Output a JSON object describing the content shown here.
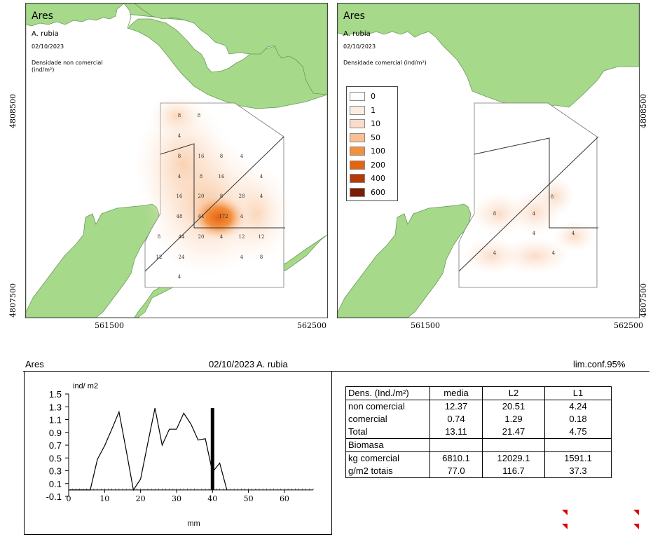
{
  "map_left": {
    "title": "Ares",
    "species": "A. rubia",
    "date": "02/10/2023",
    "density_label": "Densidade non comercial (ind/m²)",
    "point_labels": [
      "8",
      "8",
      "4",
      "8",
      "16",
      "8",
      "4",
      "4",
      "8",
      "16",
      "4",
      "16",
      "20",
      "8",
      "28",
      "4",
      "48",
      "44",
      "172",
      "4",
      "8",
      "44",
      "20",
      "4",
      "12",
      "12",
      "12",
      "24",
      "4",
      "8",
      "4"
    ]
  },
  "map_right": {
    "title": "Ares",
    "species": "A. rubia",
    "date": "02/10/2023",
    "density_label": "Densidade comercial (ind/m²)",
    "point_labels": [
      "8",
      "8",
      "4",
      "4",
      "4",
      "4",
      "4"
    ]
  },
  "legend": {
    "entries": [
      {
        "label": "0",
        "color": "#ffffff"
      },
      {
        "label": "1",
        "color": "#fdece0"
      },
      {
        "label": "10",
        "color": "#fbdcc8"
      },
      {
        "label": "50",
        "color": "#f8c094"
      },
      {
        "label": "100",
        "color": "#f39040"
      },
      {
        "label": "200",
        "color": "#e5650f"
      },
      {
        "label": "400",
        "color": "#b43a08"
      },
      {
        "label": "600",
        "color": "#7a1f03"
      }
    ]
  },
  "map_axes": {
    "left_y_ticks": [
      "4808500",
      "4807500"
    ],
    "right_y_ticks": [
      "4808500",
      "4807500"
    ],
    "left_x_ticks": [
      "561500",
      "562500"
    ],
    "right_x_ticks": [
      "561500",
      "562500"
    ]
  },
  "header": {
    "location": "Ares",
    "date_species": "02/10/2023 A. rubia",
    "conf": "lim.conf.95%"
  },
  "chart_data": {
    "type": "line",
    "ylabel": "ind/ m2",
    "xlabel": "mm",
    "xlim": [
      0,
      68
    ],
    "ylim": [
      -0.1,
      1.5
    ],
    "x_ticks": [
      0,
      10,
      20,
      30,
      40,
      50,
      60
    ],
    "y_ticks": [
      -0.1,
      0.1,
      0.3,
      0.5,
      0.7,
      0.9,
      1.1,
      1.3,
      1.5
    ],
    "x": [
      0,
      2,
      4,
      6,
      8,
      10,
      12,
      14,
      16,
      18,
      20,
      22,
      24,
      26,
      28,
      30,
      32,
      34,
      36,
      38,
      40,
      42,
      44
    ],
    "values": [
      0,
      0,
      0,
      0,
      0.48,
      0.69,
      0.95,
      1.22,
      0.62,
      0.0,
      0.17,
      0.73,
      1.28,
      0.7,
      0.95,
      0.95,
      1.2,
      1.03,
      0.78,
      0.8,
      0.28,
      0.42,
      0.0
    ],
    "marker": {
      "x": 40,
      "y_top": 1.28
    }
  },
  "stats_table": {
    "header": [
      "Dens. (Ind./m²)",
      "media",
      "L2",
      "L1"
    ],
    "rows": [
      [
        "non comercial",
        "12.37",
        "20.51",
        "4.24"
      ],
      [
        "comercial",
        "0.74",
        "1.29",
        "0.18"
      ],
      [
        "Total",
        "13.11",
        "21.47",
        "4.75"
      ],
      [
        "Biomasa",
        "",
        "",
        ""
      ],
      [
        "kg comercial",
        "6810.1",
        "12029.1",
        "1591.1"
      ],
      [
        "g/m2 totais",
        "77.0",
        "116.7",
        "37.3"
      ]
    ]
  }
}
